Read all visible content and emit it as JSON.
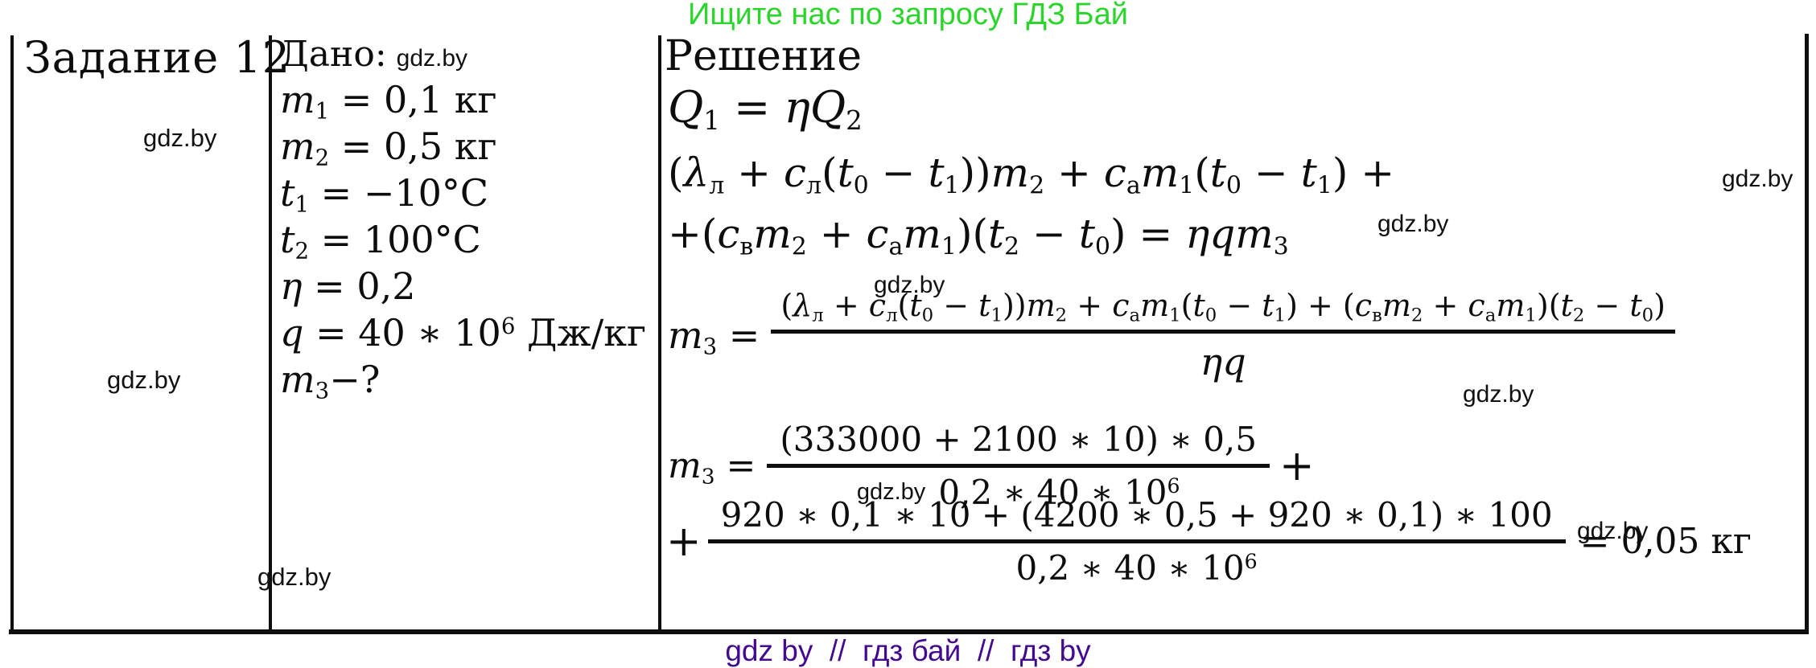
{
  "header": {
    "promo": "Ищите нас по запросу ГДЗ Бай"
  },
  "footer": {
    "promo": "gdz by  //  гдз бай  //  гдз by"
  },
  "watermark": {
    "text": "gdz.by"
  },
  "colors": {
    "promo_green": "#2bd52b",
    "promo_purple": "#43098e",
    "ink": "#0d0d0d"
  },
  "task": {
    "title": "Задание 12"
  },
  "given": {
    "label": "Дано:",
    "lines": [
      "{m}[1] = 0,1 кг",
      "{m}[2] = 0,5 кг",
      "{t}[1] = −10°С",
      "{t}[2] = 100°С",
      "{η} = 0,2",
      "{q} = 40 ∗ 10^6 Дж/кг",
      "{m}[3]−?"
    ]
  },
  "solution": {
    "title": "Решение",
    "eq1": "{Q}[1] = {η}{Q}[2]",
    "eq2a": "({λ}[л] + {c}[л]({t}[0] − {t}[1])){m}[2] + {c}[а]{m}[1]({t}[0] − {t}[1]) +",
    "eq2b": "+({c}[в]{m}[2] + {c}[а]{m}[1])({t}[2] − {t}[0]) = {η}{q}{m}[3]",
    "eq3": {
      "lhs": "{m}[3] =",
      "num": "({λ}[л] + {c}[л]({t}[0] − {t}[1])){m}[2] + {c}[а]{m}[1]({t}[0] − {t}[1]) + ({c}[в]{m}[2] + {c}[а]{m}[1])({t}[2] − {t}[0])",
      "den": "{η}{q}"
    },
    "eq4": {
      "lhs": "{m}[3] =",
      "num": "(333000 + 2100 ∗ 10) ∗ 0,5",
      "den": "0,2 ∗ 40 ∗ 10^6",
      "tail": "+"
    },
    "eq5": {
      "lead": "+",
      "num": "920 ∗ 0,1 ∗ 10 + (4200 ∗ 0,5 + 920 ∗ 0,1) ∗ 100",
      "den": "0,2 ∗ 40 ∗ 10^6",
      "result": "= 0,05 кг"
    }
  }
}
